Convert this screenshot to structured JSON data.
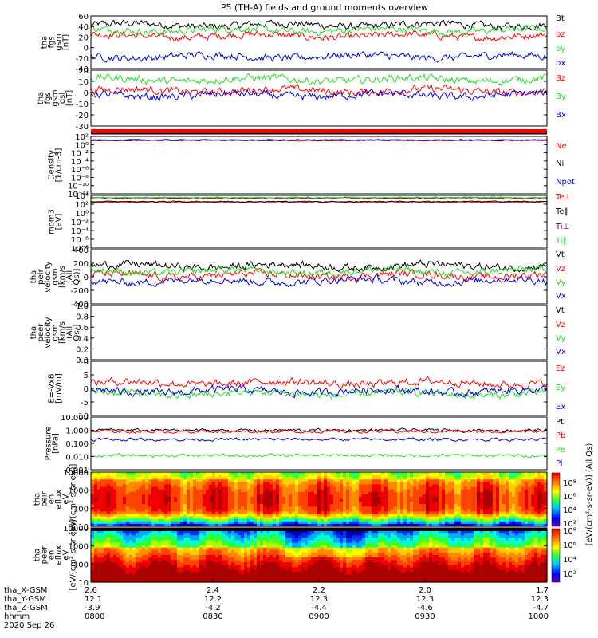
{
  "title": "P5 (TH-A) fields and ground moments overview",
  "colors": {
    "black": "#000000",
    "red": "#ff0000",
    "green": "#22dd22",
    "blue": "#0000dd",
    "dark_red": "#880000"
  },
  "chart_data": [
    {
      "type": "line",
      "ylabel": "tha fgs gsm [nT]",
      "ylim": [
        -40,
        60
      ],
      "ticks": [
        "60",
        "40",
        "20",
        "0",
        "-20",
        "-40"
      ],
      "series": [
        {
          "name": "Bt",
          "color": "black",
          "approx_level": 43
        },
        {
          "name": "bz",
          "color": "red",
          "approx_level": 22
        },
        {
          "name": "by",
          "color": "green",
          "approx_level": 33
        },
        {
          "name": "bx",
          "color": "blue",
          "approx_level": -17
        }
      ]
    },
    {
      "type": "line",
      "ylabel": "tha fgs gsm dsl [nT]",
      "ylim": [
        -38,
        22
      ],
      "ticks": [
        "20",
        "10",
        "0",
        "-10",
        "-20",
        "-30"
      ],
      "series": [
        {
          "name": "Bz",
          "color": "red",
          "approx_level": 0
        },
        {
          "name": "By",
          "color": "green",
          "approx_level": 12
        },
        {
          "name": "Bx",
          "color": "blue",
          "approx_level": -5
        }
      ]
    },
    {
      "type": "line",
      "ylabel": "Density [1/cm-3]",
      "scale": "log",
      "ylim": [
        1e-12,
        100
      ],
      "ticks": [
        "10²",
        "10⁰",
        "10⁻²",
        "10⁻⁴",
        "10⁻⁶",
        "10⁻⁸",
        "10⁻¹⁰",
        "10⁻¹²"
      ],
      "series": [
        {
          "name": "Ne",
          "color": "red",
          "approx_level": 10
        },
        {
          "name": "Ni",
          "color": "black",
          "approx_level": 12
        },
        {
          "name": "Npot",
          "color": "blue",
          "approx_level": 14
        }
      ]
    },
    {
      "type": "line",
      "ylabel": "mom3 [eV]",
      "scale": "log",
      "ylim": [
        1e-08,
        10000
      ],
      "ticks": [
        "10⁴",
        "10²",
        "10⁰",
        "10⁻²",
        "10⁻⁴",
        "10⁻⁶",
        "10⁻⁸"
      ],
      "series": [
        {
          "name": "Te⊥",
          "color": "red",
          "approx_level": 300
        },
        {
          "name": "Te‖",
          "color": "black",
          "approx_level": 400
        },
        {
          "name": "Ti⊥",
          "color": "dark_red",
          "approx_level": 2500
        },
        {
          "name": "Ti‖",
          "color": "green",
          "approx_level": 3500
        }
      ]
    },
    {
      "type": "line",
      "ylabel": "tha peir velocity gsm [km/s (All Qs)]",
      "ylim": [
        -400,
        400
      ],
      "ticks": [
        "400",
        "200",
        "0",
        "-200",
        "-400"
      ],
      "series": [
        {
          "name": "Vt",
          "color": "black",
          "approx_level": 160
        },
        {
          "name": "Vz",
          "color": "red",
          "approx_level": 20
        },
        {
          "name": "Vy",
          "color": "green",
          "approx_level": 80
        },
        {
          "name": "Vx",
          "color": "blue",
          "approx_level": -60
        }
      ]
    },
    {
      "type": "line",
      "ylabel": "tha peer velocity gsm [km/s (All Qs)]",
      "ylim": [
        0,
        1
      ],
      "ticks": [
        "1.0",
        "0.8",
        "0.6",
        "0.4",
        "0.2",
        "0.0"
      ],
      "series": [
        {
          "name": "Vt",
          "color": "black"
        },
        {
          "name": "Vz",
          "color": "red"
        },
        {
          "name": "Vy",
          "color": "green"
        },
        {
          "name": "Vx",
          "color": "blue"
        }
      ]
    },
    {
      "type": "line",
      "ylabel": "E=-VxB [mV/m]",
      "ylim": [
        -10,
        10
      ],
      "ticks": [
        "10",
        "5",
        "0",
        "-5",
        "-10"
      ],
      "series": [
        {
          "name": "Ez",
          "color": "red",
          "approx_level": 2
        },
        {
          "name": "Ey",
          "color": "green",
          "approx_level": -2
        },
        {
          "name": "Ex",
          "color": "blue",
          "approx_level": -1
        }
      ]
    },
    {
      "type": "line",
      "ylabel": "Pressure [nPa]",
      "scale": "log",
      "ylim": [
        0.001,
        10
      ],
      "ticks": [
        "10.000",
        "1.000",
        "0.100",
        "0.010",
        "0.001"
      ],
      "series": [
        {
          "name": "Pt",
          "color": "black",
          "approx_level": 1.0
        },
        {
          "name": "Pb",
          "color": "red",
          "approx_level": 0.8
        },
        {
          "name": "Pe",
          "color": "green",
          "approx_level": 0.012
        },
        {
          "name": "Pi",
          "color": "blue",
          "approx_level": 0.2
        }
      ]
    },
    {
      "type": "heatmap",
      "ylabel": "tha peir en eflux eV [eV/(cm²-s-sr-eV)]",
      "scale": "log",
      "ylim": [
        5,
        25000
      ],
      "ticks": [
        "10000",
        "1000",
        "100",
        "10"
      ]
    },
    {
      "type": "heatmap",
      "ylabel": "tha peer en eflux eV [eV/(cm²-s-sr-eV)]",
      "scale": "log",
      "ylim": [
        5,
        25000
      ],
      "ticks": [
        "10000",
        "1000",
        "100",
        "10"
      ]
    }
  ],
  "colorbar": {
    "label": "[eV/(cm²-s-sr-eV)] (All Qs)",
    "upper_ticks": [
      "10⁸",
      "10⁶",
      "10⁴",
      "10²"
    ],
    "lower_ticks": [
      "10⁸",
      "10⁶",
      "10⁴",
      "10²"
    ]
  },
  "x_axis": {
    "row_labels": [
      "tha_X-GSM",
      "tha_Y-GSM",
      "tha_Z-GSM",
      "hhmm",
      "2020 Sep 26"
    ],
    "columns": [
      {
        "x": "2.6",
        "y": "12.1",
        "z": "-3.9",
        "t": "0800"
      },
      {
        "x": "2.4",
        "y": "12.2",
        "z": "-4.2",
        "t": "0830"
      },
      {
        "x": "2.2",
        "y": "12.3",
        "z": "-4.4",
        "t": "0900"
      },
      {
        "x": "2.0",
        "y": "12.3",
        "z": "-4.6",
        "t": "0930"
      },
      {
        "x": "1.7",
        "y": "12.3",
        "z": "-4.7",
        "t": "1000"
      }
    ]
  }
}
